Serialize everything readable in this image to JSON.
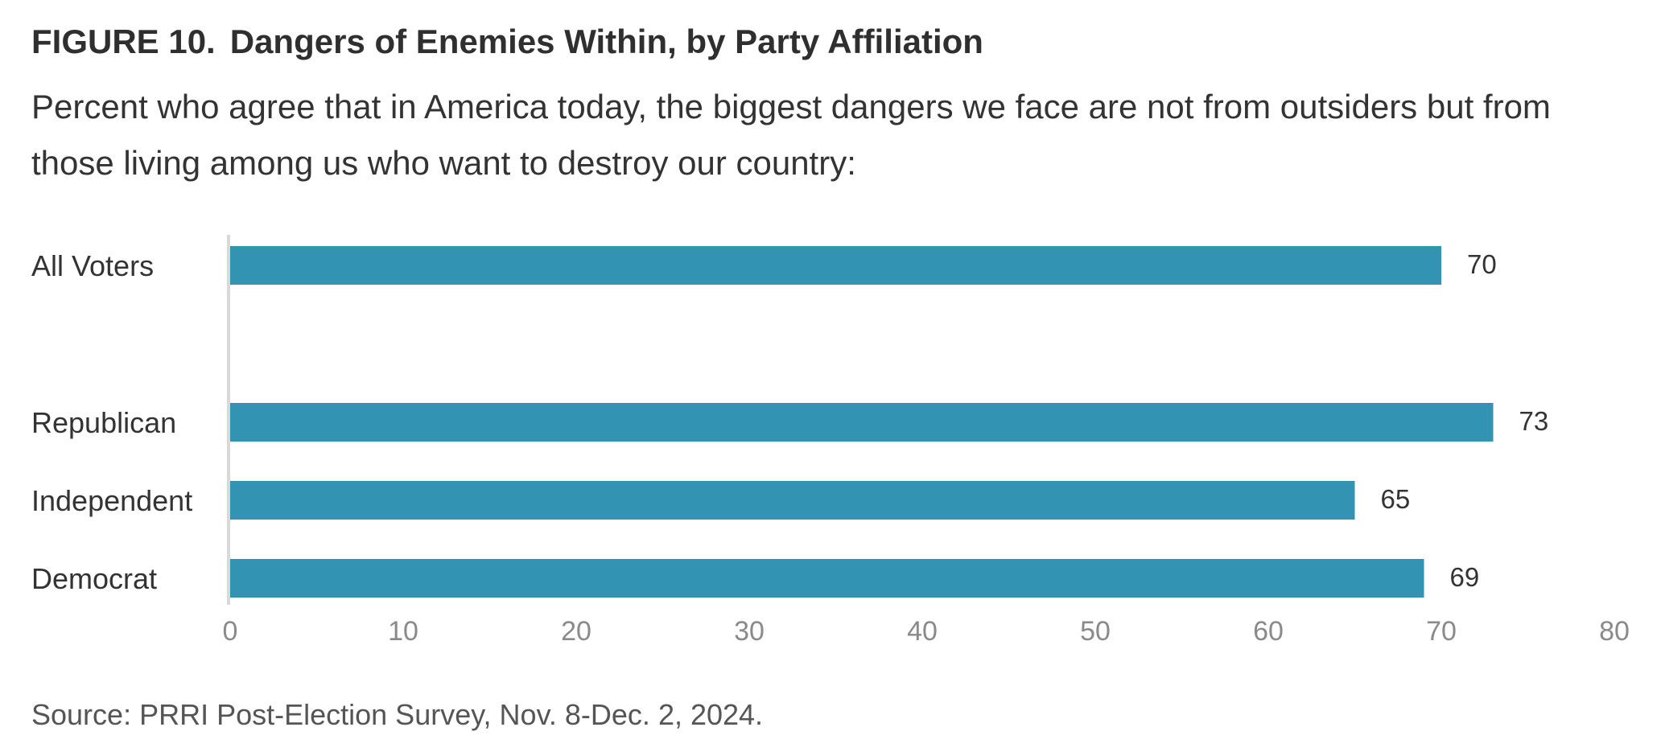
{
  "figure": {
    "label": "FIGURE 10.",
    "title": "Dangers of Enemies Within, by Party Affiliation",
    "subtitle": "Percent who agree that in America today, the biggest dangers we face are not from outsiders but from those living among us who want to destroy our country:",
    "source": "Source: PRRI Post-Election Survey, Nov. 8-Dec. 2, 2024."
  },
  "chart_data": {
    "type": "bar",
    "orientation": "horizontal",
    "title": "Dangers of Enemies Within, by Party Affiliation",
    "categories": [
      "All Voters",
      "Republican",
      "Independent",
      "Democrat"
    ],
    "values": [
      70,
      73,
      65,
      69
    ],
    "xlim": [
      0,
      80
    ],
    "xticks": [
      0,
      10,
      20,
      30,
      40,
      50,
      60,
      70,
      80
    ],
    "grid": false,
    "legend": "none",
    "bar_color": "#3293b3",
    "axis_line_color": "#d9d9d9"
  }
}
